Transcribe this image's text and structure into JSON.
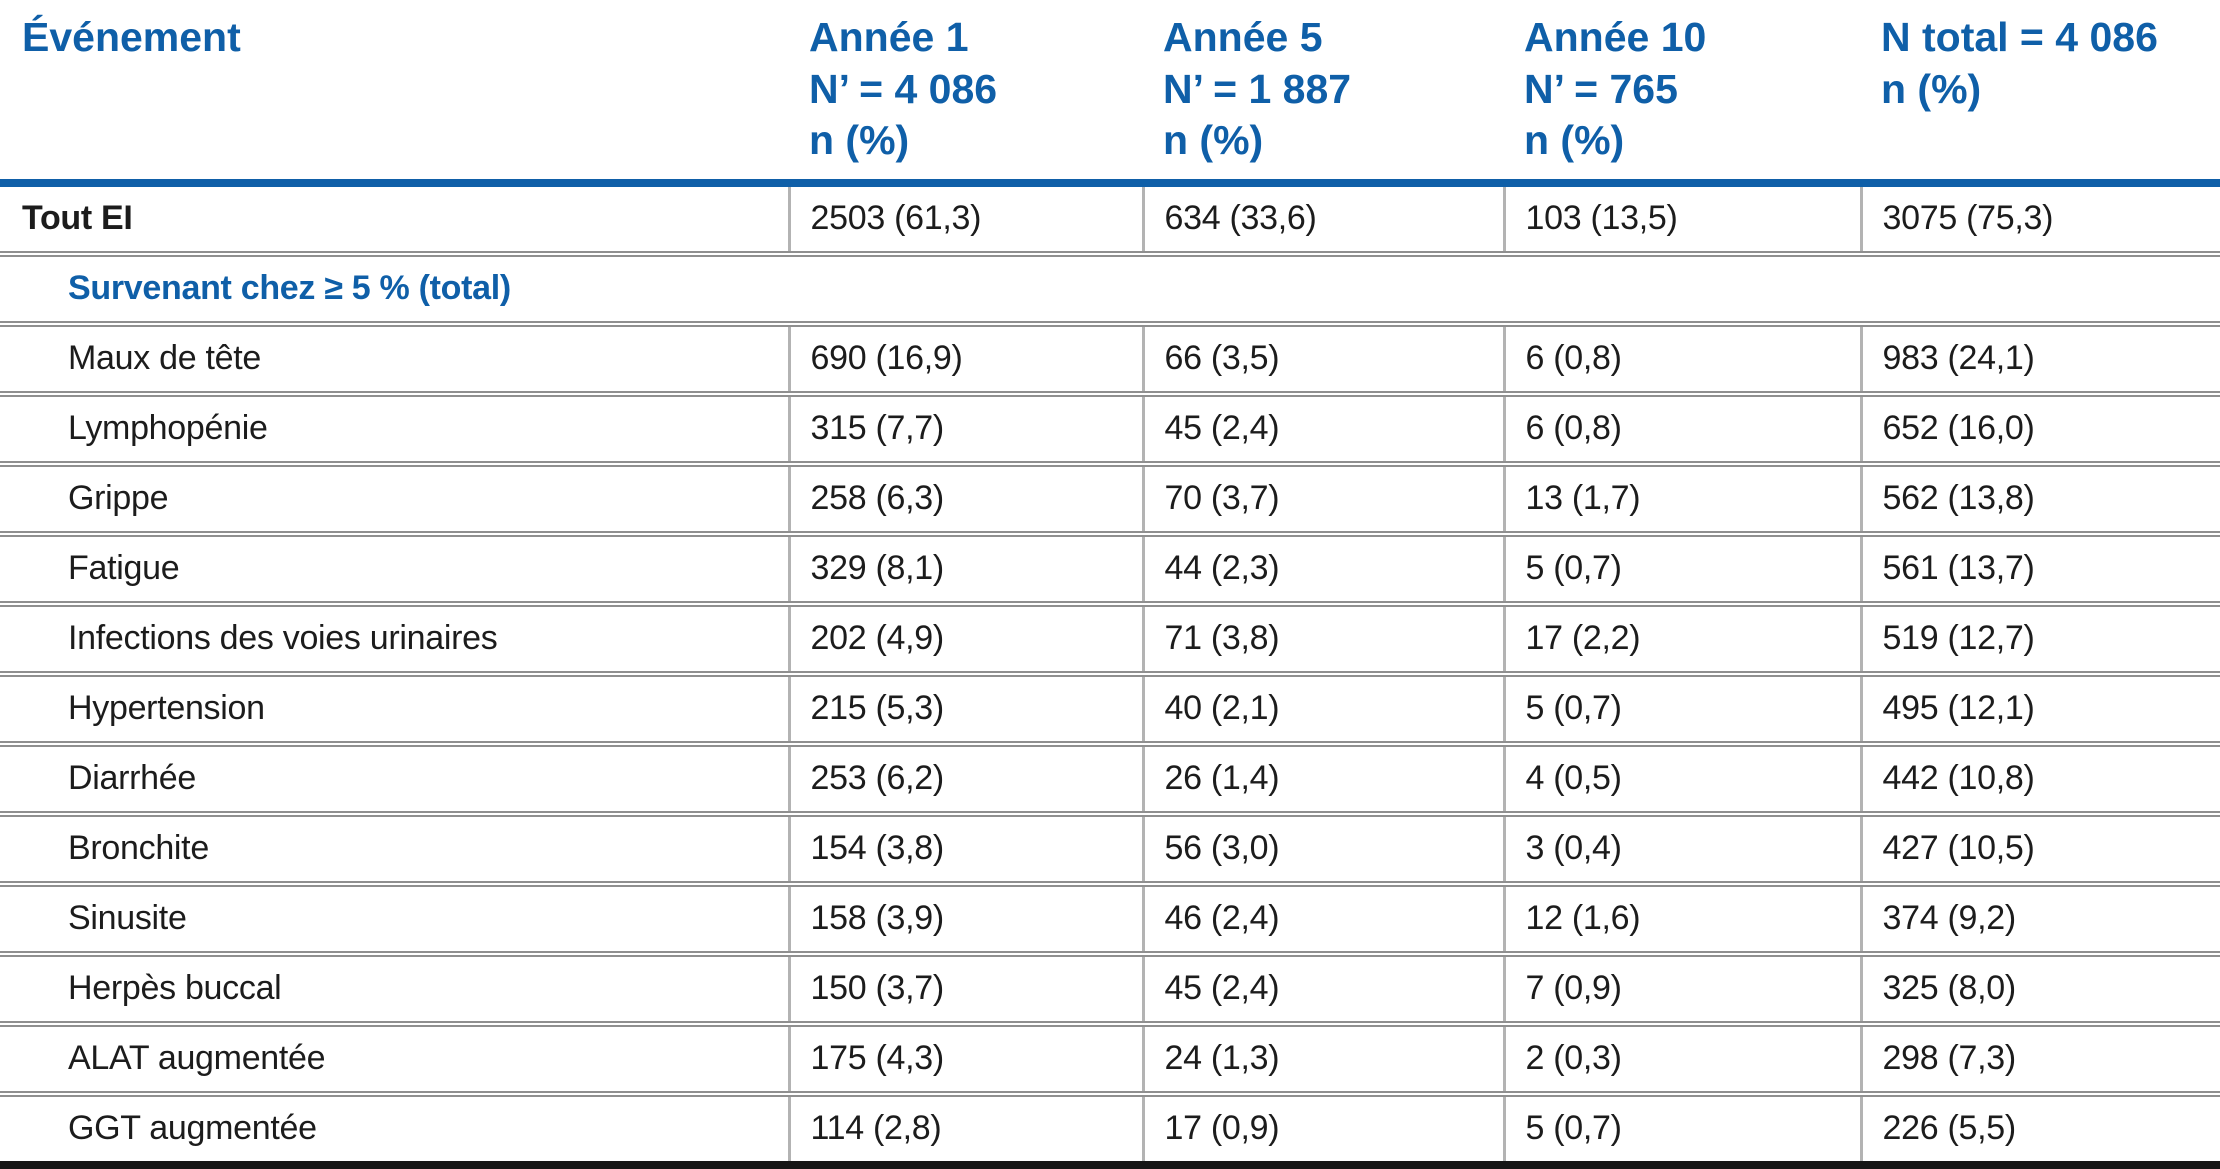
{
  "colors": {
    "accent_blue": "#0f5fa8",
    "body_text": "#1c1c1c",
    "row_divider_gray": "#8f8f8f",
    "column_divider_gray": "#b3b3b3",
    "bottom_rule_black": "#161616"
  },
  "table": {
    "columns": [
      {
        "id": "evenement",
        "label_lines": [
          "Événement"
        ]
      },
      {
        "id": "annee1",
        "label_lines": [
          "Année 1",
          "N’ = 4 086",
          "n (%)"
        ]
      },
      {
        "id": "annee5",
        "label_lines": [
          "Année 5",
          "N’ = 1 887",
          "n (%)"
        ]
      },
      {
        "id": "annee10",
        "label_lines": [
          "Année 10",
          "N’ = 765",
          "n (%)"
        ]
      },
      {
        "id": "ntotal",
        "label_lines": [
          "N total = 4 086",
          "n (%)"
        ]
      }
    ],
    "rows": [
      {
        "type": "total",
        "label": "Tout EI",
        "values": [
          "2503 (61,3)",
          "634 (33,6)",
          "103 (13,5)",
          "3075 (75,3)"
        ]
      },
      {
        "type": "section",
        "label": "Survenant chez ≥ 5 % (total)",
        "values": []
      },
      {
        "type": "event",
        "label": "Maux de tête",
        "values": [
          "690 (16,9)",
          "66 (3,5)",
          "6 (0,8)",
          "983 (24,1)"
        ]
      },
      {
        "type": "event",
        "label": "Lymphopénie",
        "values": [
          "315 (7,7)",
          "45 (2,4)",
          "6 (0,8)",
          "652 (16,0)"
        ]
      },
      {
        "type": "event",
        "label": "Grippe",
        "values": [
          "258 (6,3)",
          "70 (3,7)",
          "13 (1,7)",
          "562 (13,8)"
        ]
      },
      {
        "type": "event",
        "label": "Fatigue",
        "values": [
          "329 (8,1)",
          "44 (2,3)",
          "5 (0,7)",
          "561 (13,7)"
        ]
      },
      {
        "type": "event",
        "label": "Infections des voies urinaires",
        "values": [
          "202 (4,9)",
          "71 (3,8)",
          "17 (2,2)",
          "519 (12,7)"
        ]
      },
      {
        "type": "event",
        "label": "Hypertension",
        "values": [
          "215 (5,3)",
          "40 (2,1)",
          "5 (0,7)",
          "495 (12,1)"
        ]
      },
      {
        "type": "event",
        "label": "Diarrhée",
        "values": [
          "253 (6,2)",
          "26 (1,4)",
          "4 (0,5)",
          "442 (10,8)"
        ]
      },
      {
        "type": "event",
        "label": "Bronchite",
        "values": [
          "154 (3,8)",
          "56 (3,0)",
          "3 (0,4)",
          "427 (10,5)"
        ]
      },
      {
        "type": "event",
        "label": "Sinusite",
        "values": [
          "158 (3,9)",
          "46 (2,4)",
          "12 (1,6)",
          "374 (9,2)"
        ]
      },
      {
        "type": "event",
        "label": "Herpès buccal",
        "values": [
          "150 (3,7)",
          "45 (2,4)",
          "7 (0,9)",
          "325 (8,0)"
        ]
      },
      {
        "type": "event",
        "label": "ALAT augmentée",
        "values": [
          "175 (4,3)",
          "24 (1,3)",
          "2 (0,3)",
          "298 (7,3)"
        ]
      },
      {
        "type": "event",
        "label": "GGT augmentée",
        "values": [
          "114 (2,8)",
          "17 (0,9)",
          "5 (0,7)",
          "226 (5,5)"
        ]
      }
    ]
  }
}
